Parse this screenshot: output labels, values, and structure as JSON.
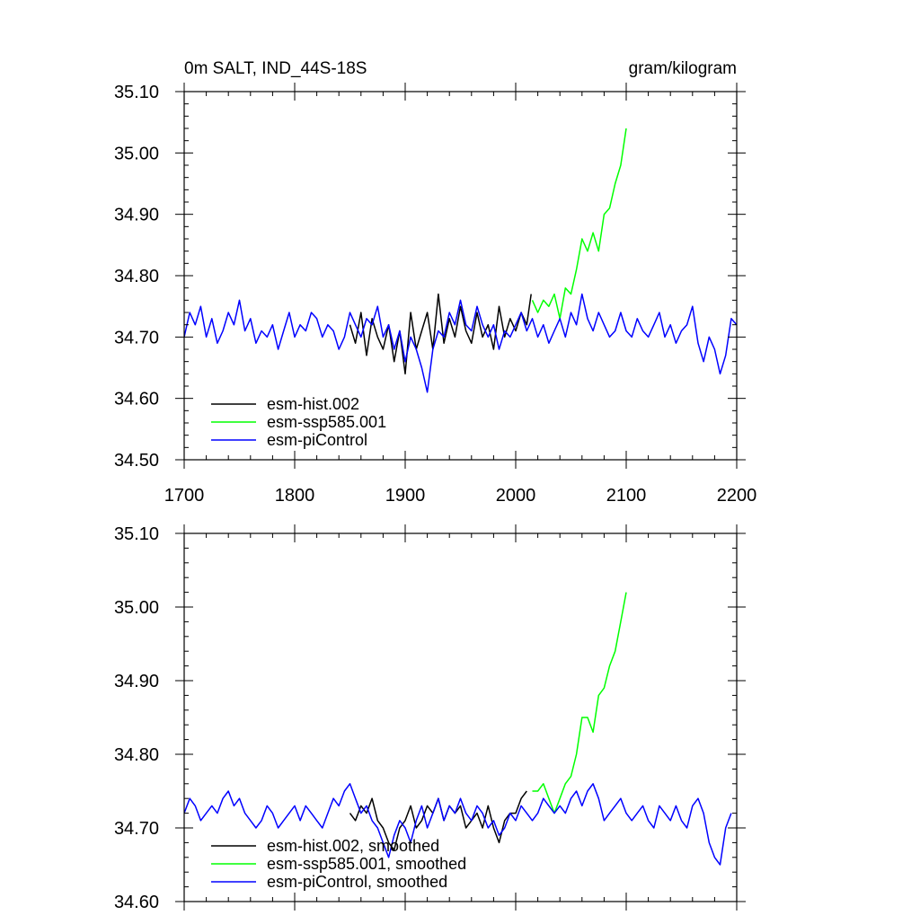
{
  "chart_data": [
    {
      "type": "line",
      "title_left": "0m SALT, IND_44S-18S",
      "title_right": "gram/kilogram",
      "xlabel": "",
      "ylabel": "",
      "xlim": [
        1700,
        2200
      ],
      "ylim": [
        34.5,
        35.1
      ],
      "x_ticks": [
        "1700",
        "1800",
        "1900",
        "2000",
        "2100",
        "2200"
      ],
      "y_ticks": [
        "34.50",
        "34.60",
        "34.70",
        "34.80",
        "34.90",
        "35.00",
        "35.10"
      ],
      "legend_position": "bottom-left",
      "series": [
        {
          "name": "esm-hist.002",
          "color": "#000000",
          "x": [
            1850,
            1855,
            1860,
            1865,
            1870,
            1875,
            1880,
            1885,
            1890,
            1895,
            1900,
            1905,
            1910,
            1915,
            1920,
            1925,
            1930,
            1935,
            1940,
            1945,
            1950,
            1955,
            1960,
            1965,
            1970,
            1975,
            1980,
            1985,
            1990,
            1995,
            2000,
            2005,
            2010,
            2014
          ],
          "y": [
            34.72,
            34.69,
            34.74,
            34.67,
            34.73,
            34.7,
            34.68,
            34.72,
            34.66,
            34.71,
            34.64,
            34.74,
            34.68,
            34.71,
            34.74,
            34.68,
            34.77,
            34.69,
            34.73,
            34.7,
            34.75,
            34.71,
            34.69,
            34.74,
            34.7,
            34.72,
            34.68,
            34.75,
            34.7,
            34.73,
            34.71,
            34.74,
            34.72,
            34.77
          ]
        },
        {
          "name": "esm-ssp585.001",
          "color": "#00ff00",
          "x": [
            2015,
            2020,
            2025,
            2030,
            2035,
            2040,
            2045,
            2050,
            2055,
            2060,
            2065,
            2070,
            2075,
            2080,
            2085,
            2090,
            2095,
            2100
          ],
          "y": [
            34.76,
            34.74,
            34.76,
            34.75,
            34.77,
            34.73,
            34.78,
            34.77,
            34.81,
            34.86,
            34.84,
            34.87,
            34.84,
            34.9,
            34.91,
            34.95,
            34.98,
            35.04
          ]
        },
        {
          "name": "esm-piControl",
          "color": "#0000ff",
          "x": [
            1700,
            1705,
            1710,
            1715,
            1720,
            1725,
            1730,
            1735,
            1740,
            1745,
            1750,
            1755,
            1760,
            1765,
            1770,
            1775,
            1780,
            1785,
            1790,
            1795,
            1800,
            1805,
            1810,
            1815,
            1820,
            1825,
            1830,
            1835,
            1840,
            1845,
            1850,
            1855,
            1860,
            1865,
            1870,
            1875,
            1880,
            1885,
            1890,
            1895,
            1900,
            1905,
            1910,
            1915,
            1920,
            1925,
            1930,
            1935,
            1940,
            1945,
            1950,
            1955,
            1960,
            1965,
            1970,
            1975,
            1980,
            1985,
            1990,
            1995,
            2000,
            2005,
            2010,
            2015,
            2020,
            2025,
            2030,
            2035,
            2040,
            2045,
            2050,
            2055,
            2060,
            2065,
            2070,
            2075,
            2080,
            2085,
            2090,
            2095,
            2100,
            2105,
            2110,
            2115,
            2120,
            2125,
            2130,
            2135,
            2140,
            2145,
            2150,
            2155,
            2160,
            2165,
            2170,
            2175,
            2180,
            2185,
            2190,
            2195,
            2200
          ],
          "y": [
            34.7,
            34.74,
            34.72,
            34.75,
            34.7,
            34.73,
            34.69,
            34.71,
            34.74,
            34.72,
            34.76,
            34.71,
            34.73,
            34.69,
            34.71,
            34.7,
            34.72,
            34.68,
            34.71,
            34.74,
            34.7,
            34.72,
            34.71,
            34.74,
            34.73,
            34.7,
            34.72,
            34.71,
            34.68,
            34.7,
            34.74,
            34.72,
            34.7,
            34.73,
            34.72,
            34.75,
            34.7,
            34.72,
            34.68,
            34.71,
            34.66,
            34.7,
            34.68,
            34.65,
            34.61,
            34.68,
            34.71,
            34.7,
            34.74,
            34.72,
            34.76,
            34.72,
            34.71,
            34.75,
            34.72,
            34.7,
            34.72,
            34.68,
            34.71,
            34.7,
            34.72,
            34.74,
            34.71,
            34.73,
            34.7,
            34.72,
            34.69,
            34.71,
            34.73,
            34.7,
            34.74,
            34.72,
            34.77,
            34.73,
            34.71,
            34.74,
            34.72,
            34.7,
            34.71,
            34.74,
            34.71,
            34.7,
            34.73,
            34.71,
            34.7,
            34.72,
            34.74,
            34.7,
            34.72,
            34.69,
            34.71,
            34.72,
            34.75,
            34.69,
            34.66,
            34.7,
            34.68,
            34.64,
            34.67,
            34.73,
            34.72
          ]
        }
      ]
    },
    {
      "type": "line",
      "title_left": "",
      "title_right": "",
      "xlabel": "",
      "ylabel": "",
      "xlim": [
        1700,
        2200
      ],
      "ylim": [
        34.6,
        35.1
      ],
      "x_ticks": [],
      "y_ticks": [
        "34.60",
        "34.70",
        "34.80",
        "34.90",
        "35.00",
        "35.10"
      ],
      "legend_position": "bottom-left",
      "series": [
        {
          "name": "esm-hist.002, smoothed",
          "color": "#000000",
          "x": [
            1850,
            1855,
            1860,
            1865,
            1870,
            1875,
            1880,
            1885,
            1890,
            1895,
            1900,
            1905,
            1910,
            1915,
            1920,
            1925,
            1930,
            1935,
            1940,
            1945,
            1950,
            1955,
            1960,
            1965,
            1970,
            1975,
            1980,
            1985,
            1990,
            1995,
            2000,
            2005,
            2010
          ],
          "y": [
            34.72,
            34.71,
            34.73,
            34.72,
            34.74,
            34.71,
            34.7,
            34.68,
            34.67,
            34.7,
            34.71,
            34.73,
            34.7,
            34.71,
            34.73,
            34.72,
            34.74,
            34.71,
            34.73,
            34.72,
            34.73,
            34.7,
            34.71,
            34.72,
            34.7,
            34.73,
            34.7,
            34.68,
            34.71,
            34.72,
            34.72,
            34.74,
            34.75
          ]
        },
        {
          "name": "esm-ssp585.001, smoothed",
          "color": "#00ff00",
          "x": [
            2015,
            2020,
            2025,
            2030,
            2035,
            2040,
            2045,
            2050,
            2055,
            2060,
            2065,
            2070,
            2075,
            2080,
            2085,
            2090,
            2095,
            2100
          ],
          "y": [
            34.75,
            34.75,
            34.76,
            34.74,
            34.72,
            34.74,
            34.76,
            34.77,
            34.8,
            34.85,
            34.85,
            34.83,
            34.88,
            34.89,
            34.92,
            34.94,
            34.98,
            35.02
          ]
        },
        {
          "name": "esm-piControl, smoothed",
          "color": "#0000ff",
          "x": [
            1700,
            1705,
            1710,
            1715,
            1720,
            1725,
            1730,
            1735,
            1740,
            1745,
            1750,
            1755,
            1760,
            1765,
            1770,
            1775,
            1780,
            1785,
            1790,
            1795,
            1800,
            1805,
            1810,
            1815,
            1820,
            1825,
            1830,
            1835,
            1840,
            1845,
            1850,
            1855,
            1860,
            1865,
            1870,
            1875,
            1880,
            1885,
            1890,
            1895,
            1900,
            1905,
            1910,
            1915,
            1920,
            1925,
            1930,
            1935,
            1940,
            1945,
            1950,
            1955,
            1960,
            1965,
            1970,
            1975,
            1980,
            1985,
            1990,
            1995,
            2000,
            2005,
            2010,
            2015,
            2020,
            2025,
            2030,
            2035,
            2040,
            2045,
            2050,
            2055,
            2060,
            2065,
            2070,
            2075,
            2080,
            2085,
            2090,
            2095,
            2100,
            2105,
            2110,
            2115,
            2120,
            2125,
            2130,
            2135,
            2140,
            2145,
            2150,
            2155,
            2160,
            2165,
            2170,
            2175,
            2180,
            2185,
            2190,
            2195
          ],
          "y": [
            34.72,
            34.74,
            34.73,
            34.71,
            34.72,
            34.73,
            34.72,
            34.74,
            34.75,
            34.73,
            34.74,
            34.72,
            34.71,
            34.7,
            34.71,
            34.73,
            34.72,
            34.7,
            34.71,
            34.72,
            34.73,
            34.71,
            34.73,
            34.72,
            34.71,
            34.7,
            34.72,
            34.74,
            34.73,
            34.75,
            34.76,
            34.74,
            34.72,
            34.73,
            34.71,
            34.7,
            34.68,
            34.66,
            34.69,
            34.71,
            34.7,
            34.68,
            34.71,
            34.73,
            34.7,
            34.72,
            34.74,
            34.71,
            34.73,
            34.72,
            34.74,
            34.72,
            34.71,
            34.73,
            34.72,
            34.7,
            34.71,
            34.69,
            34.7,
            34.72,
            34.71,
            34.73,
            34.72,
            34.71,
            34.72,
            34.74,
            34.73,
            34.72,
            34.73,
            34.72,
            34.74,
            34.75,
            34.73,
            34.75,
            34.76,
            34.74,
            34.71,
            34.72,
            34.73,
            34.74,
            34.72,
            34.71,
            34.72,
            34.73,
            34.71,
            34.7,
            34.73,
            34.72,
            34.71,
            34.73,
            34.71,
            34.7,
            34.73,
            34.74,
            34.72,
            34.68,
            34.66,
            34.65,
            34.7,
            34.72
          ]
        }
      ]
    }
  ]
}
